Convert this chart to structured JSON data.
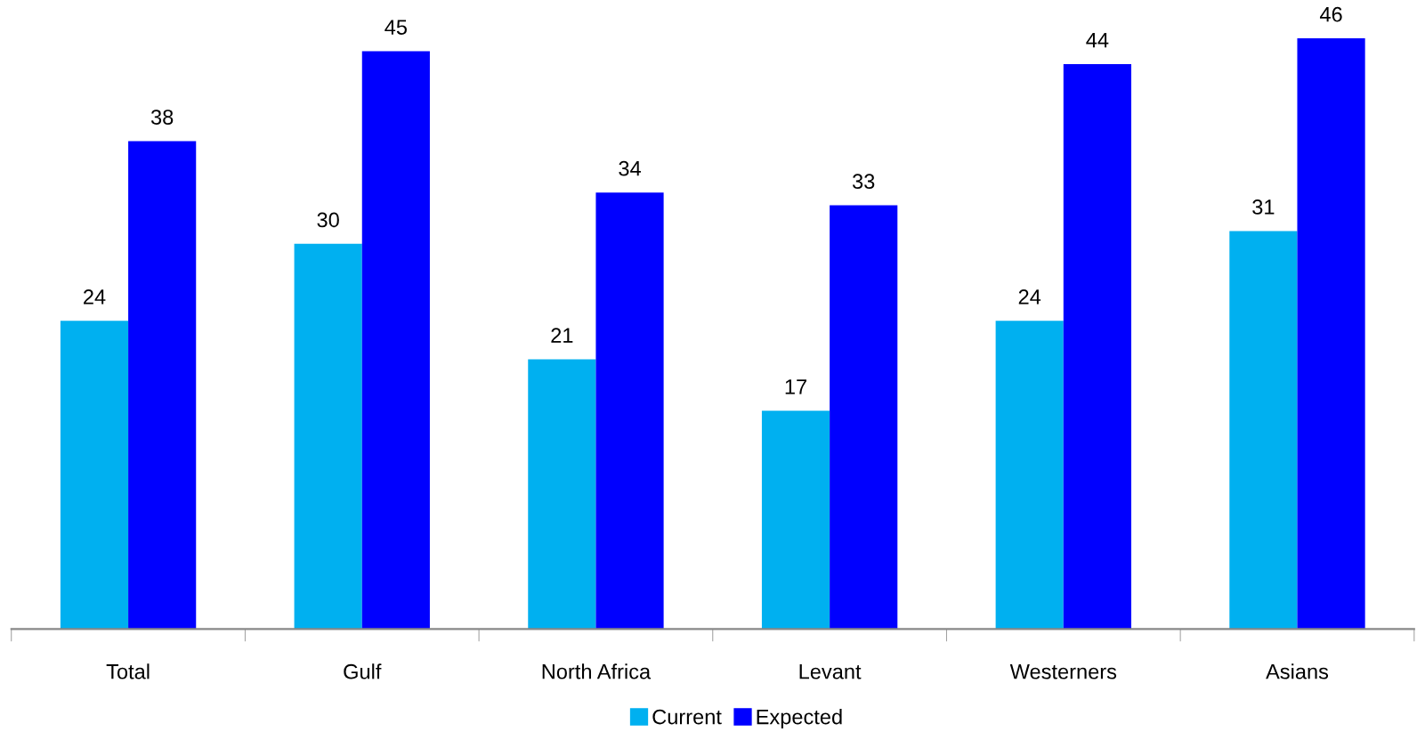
{
  "chart_data": {
    "type": "bar",
    "categories": [
      "Total",
      "Gulf",
      "North Africa",
      "Levant",
      "Westerners",
      "Asians"
    ],
    "series": [
      {
        "name": "Current",
        "color": "#00b0f0",
        "values": [
          24,
          30,
          21,
          17,
          24,
          31
        ]
      },
      {
        "name": "Expected",
        "color": "#0000ff",
        "values": [
          38,
          45,
          34,
          33,
          44,
          46
        ]
      }
    ],
    "data_labels": true,
    "legend": "bottom",
    "grid": false
  }
}
